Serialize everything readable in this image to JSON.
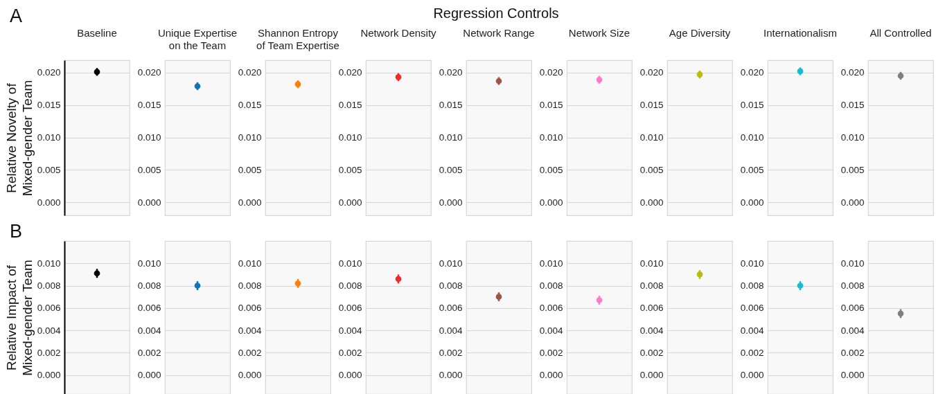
{
  "chart_data": [
    {
      "type": "scatter",
      "title": "Baseline",
      "ylabel": "Relative Novelty of\nMixed-gender Team",
      "annotations": [
        "A",
        "Regression Controls"
      ],
      "categories": [
        null
      ],
      "values": [
        0.0201
      ],
      "errors": [
        0.0006
      ],
      "color": "#000000",
      "marker": "circle",
      "ylim": [
        -0.002,
        0.0219
      ],
      "yticks": [
        {
          "value": 0,
          "label": "0.000"
        },
        {
          "value": 0.005,
          "label": "0.005"
        },
        {
          "value": 0.01,
          "label": "0.010"
        },
        {
          "value": 0.015,
          "label": "0.015"
        },
        {
          "value": 0.02,
          "label": "0.020"
        }
      ],
      "grid": "y"
    },
    {
      "type": "scatter",
      "title": "Unique Expertise\non the Team",
      "categories": [
        null
      ],
      "values": [
        0.0179
      ],
      "errors": [
        0.0006
      ],
      "color": "#0f75b8",
      "marker": "circle",
      "ylim": [
        -0.002,
        0.0219
      ],
      "yticks": [
        {
          "value": 0,
          "label": "0.000"
        },
        {
          "value": 0.005,
          "label": "0.005"
        },
        {
          "value": 0.01,
          "label": "0.010"
        },
        {
          "value": 0.015,
          "label": "0.015"
        },
        {
          "value": 0.02,
          "label": "0.020"
        }
      ],
      "grid": "y"
    },
    {
      "type": "scatter",
      "title": "Shannon Entropy\nof Team Expertise",
      "categories": [
        null
      ],
      "values": [
        0.0182
      ],
      "errors": [
        0.0006
      ],
      "color": "#ff7f0e",
      "marker": "circle",
      "ylim": [
        -0.002,
        0.0219
      ],
      "yticks": [
        {
          "value": 0,
          "label": "0.000"
        },
        {
          "value": 0.005,
          "label": "0.005"
        },
        {
          "value": 0.01,
          "label": "0.010"
        },
        {
          "value": 0.015,
          "label": "0.015"
        },
        {
          "value": 0.02,
          "label": "0.020"
        }
      ],
      "grid": "y"
    },
    {
      "type": "scatter",
      "title": "Network Density",
      "categories": [
        null
      ],
      "values": [
        0.0193
      ],
      "errors": [
        0.0006
      ],
      "color": "#ee2a2c",
      "marker": "circle",
      "ylim": [
        -0.002,
        0.0219
      ],
      "yticks": [
        {
          "value": 0,
          "label": "0.000"
        },
        {
          "value": 0.005,
          "label": "0.005"
        },
        {
          "value": 0.01,
          "label": "0.010"
        },
        {
          "value": 0.015,
          "label": "0.015"
        },
        {
          "value": 0.02,
          "label": "0.020"
        }
      ],
      "grid": "y"
    },
    {
      "type": "scatter",
      "title": "Network Range",
      "categories": [
        null
      ],
      "values": [
        0.0187
      ],
      "errors": [
        0.0006
      ],
      "color": "#9c5648",
      "marker": "circle",
      "ylim": [
        -0.002,
        0.0219
      ],
      "yticks": [
        {
          "value": 0,
          "label": "0.000"
        },
        {
          "value": 0.005,
          "label": "0.005"
        },
        {
          "value": 0.01,
          "label": "0.010"
        },
        {
          "value": 0.015,
          "label": "0.015"
        },
        {
          "value": 0.02,
          "label": "0.020"
        }
      ],
      "grid": "y"
    },
    {
      "type": "scatter",
      "title": "Network Size",
      "categories": [
        null
      ],
      "values": [
        0.0189
      ],
      "errors": [
        0.0006
      ],
      "color": "#ff7ac8",
      "marker": "circle",
      "ylim": [
        -0.002,
        0.0219
      ],
      "yticks": [
        {
          "value": 0,
          "label": "0.000"
        },
        {
          "value": 0.005,
          "label": "0.005"
        },
        {
          "value": 0.01,
          "label": "0.010"
        },
        {
          "value": 0.015,
          "label": "0.015"
        },
        {
          "value": 0.02,
          "label": "0.020"
        }
      ],
      "grid": "y"
    },
    {
      "type": "scatter",
      "title": "Age Diversity",
      "categories": [
        null
      ],
      "values": [
        0.0197
      ],
      "errors": [
        0.0006
      ],
      "color": "#bbbb11",
      "marker": "circle",
      "ylim": [
        -0.002,
        0.0219
      ],
      "yticks": [
        {
          "value": 0,
          "label": "0.000"
        },
        {
          "value": 0.005,
          "label": "0.005"
        },
        {
          "value": 0.01,
          "label": "0.010"
        },
        {
          "value": 0.015,
          "label": "0.015"
        },
        {
          "value": 0.02,
          "label": "0.020"
        }
      ],
      "grid": "y"
    },
    {
      "type": "scatter",
      "title": "Internationalism",
      "categories": [
        null
      ],
      "values": [
        0.0202
      ],
      "errors": [
        0.0006
      ],
      "color": "#13bed2",
      "marker": "circle",
      "ylim": [
        -0.002,
        0.0219
      ],
      "yticks": [
        {
          "value": 0,
          "label": "0.000"
        },
        {
          "value": 0.005,
          "label": "0.005"
        },
        {
          "value": 0.01,
          "label": "0.010"
        },
        {
          "value": 0.015,
          "label": "0.015"
        },
        {
          "value": 0.02,
          "label": "0.020"
        }
      ],
      "grid": "y"
    },
    {
      "type": "scatter",
      "title": "All Controlled",
      "categories": [
        null
      ],
      "values": [
        0.0195
      ],
      "errors": [
        0.0006
      ],
      "color": "#7f7f7f",
      "marker": "circle",
      "ylim": [
        -0.002,
        0.0219
      ],
      "yticks": [
        {
          "value": 0,
          "label": "0.000"
        },
        {
          "value": 0.005,
          "label": "0.005"
        },
        {
          "value": 0.01,
          "label": "0.010"
        },
        {
          "value": 0.015,
          "label": "0.015"
        },
        {
          "value": 0.02,
          "label": "0.020"
        }
      ],
      "grid": "y"
    },
    {
      "type": "scatter",
      "ylabel": "Relative Impact of\nMixed-gender Team",
      "annotations": [
        "B"
      ],
      "categories": [
        null
      ],
      "values": [
        0.0091
      ],
      "errors": [
        0.0004
      ],
      "color": "#000000",
      "marker": "circle",
      "ylim": [
        -0.0017,
        0.012
      ],
      "yticks": [
        {
          "value": 0,
          "label": "0.000"
        },
        {
          "value": 0.002,
          "label": "0.002"
        },
        {
          "value": 0.004,
          "label": "0.004"
        },
        {
          "value": 0.006,
          "label": "0.006"
        },
        {
          "value": 0.008,
          "label": "0.008"
        },
        {
          "value": 0.01,
          "label": "0.010"
        }
      ],
      "grid": "y"
    },
    {
      "type": "scatter",
      "categories": [
        null
      ],
      "values": [
        0.008
      ],
      "errors": [
        0.0004
      ],
      "color": "#0f75b8",
      "marker": "circle",
      "ylim": [
        -0.0017,
        0.012
      ],
      "yticks": [
        {
          "value": 0,
          "label": "0.000"
        },
        {
          "value": 0.002,
          "label": "0.002"
        },
        {
          "value": 0.004,
          "label": "0.004"
        },
        {
          "value": 0.006,
          "label": "0.006"
        },
        {
          "value": 0.008,
          "label": "0.008"
        },
        {
          "value": 0.01,
          "label": "0.010"
        }
      ],
      "grid": "y"
    },
    {
      "type": "scatter",
      "categories": [
        null
      ],
      "values": [
        0.0082
      ],
      "errors": [
        0.0004
      ],
      "color": "#ff7f0e",
      "marker": "circle",
      "ylim": [
        -0.0017,
        0.012
      ],
      "yticks": [
        {
          "value": 0,
          "label": "0.000"
        },
        {
          "value": 0.002,
          "label": "0.002"
        },
        {
          "value": 0.004,
          "label": "0.004"
        },
        {
          "value": 0.006,
          "label": "0.006"
        },
        {
          "value": 0.008,
          "label": "0.008"
        },
        {
          "value": 0.01,
          "label": "0.010"
        }
      ],
      "grid": "y"
    },
    {
      "type": "scatter",
      "categories": [
        null
      ],
      "values": [
        0.0086
      ],
      "errors": [
        0.0004
      ],
      "color": "#ee2a2c",
      "marker": "circle",
      "ylim": [
        -0.0017,
        0.012
      ],
      "yticks": [
        {
          "value": 0,
          "label": "0.000"
        },
        {
          "value": 0.002,
          "label": "0.002"
        },
        {
          "value": 0.004,
          "label": "0.004"
        },
        {
          "value": 0.006,
          "label": "0.006"
        },
        {
          "value": 0.008,
          "label": "0.008"
        },
        {
          "value": 0.01,
          "label": "0.010"
        }
      ],
      "grid": "y"
    },
    {
      "type": "scatter",
      "categories": [
        null
      ],
      "values": [
        0.007
      ],
      "errors": [
        0.0004
      ],
      "color": "#9c5648",
      "marker": "circle",
      "ylim": [
        -0.0017,
        0.012
      ],
      "yticks": [
        {
          "value": 0,
          "label": "0.000"
        },
        {
          "value": 0.002,
          "label": "0.002"
        },
        {
          "value": 0.004,
          "label": "0.004"
        },
        {
          "value": 0.006,
          "label": "0.006"
        },
        {
          "value": 0.008,
          "label": "0.008"
        },
        {
          "value": 0.01,
          "label": "0.010"
        }
      ],
      "grid": "y"
    },
    {
      "type": "scatter",
      "categories": [
        null
      ],
      "values": [
        0.0067
      ],
      "errors": [
        0.0004
      ],
      "color": "#ff7ac8",
      "marker": "circle",
      "ylim": [
        -0.0017,
        0.012
      ],
      "yticks": [
        {
          "value": 0,
          "label": "0.000"
        },
        {
          "value": 0.002,
          "label": "0.002"
        },
        {
          "value": 0.004,
          "label": "0.004"
        },
        {
          "value": 0.006,
          "label": "0.006"
        },
        {
          "value": 0.008,
          "label": "0.008"
        },
        {
          "value": 0.01,
          "label": "0.010"
        }
      ],
      "grid": "y"
    },
    {
      "type": "scatter",
      "categories": [
        null
      ],
      "values": [
        0.009
      ],
      "errors": [
        0.0004
      ],
      "color": "#bbbb11",
      "marker": "circle",
      "ylim": [
        -0.0017,
        0.012
      ],
      "yticks": [
        {
          "value": 0,
          "label": "0.000"
        },
        {
          "value": 0.002,
          "label": "0.002"
        },
        {
          "value": 0.004,
          "label": "0.004"
        },
        {
          "value": 0.006,
          "label": "0.006"
        },
        {
          "value": 0.008,
          "label": "0.008"
        },
        {
          "value": 0.01,
          "label": "0.010"
        }
      ],
      "grid": "y"
    },
    {
      "type": "scatter",
      "categories": [
        null
      ],
      "values": [
        0.008
      ],
      "errors": [
        0.0004
      ],
      "color": "#13bed2",
      "marker": "circle",
      "ylim": [
        -0.0017,
        0.012
      ],
      "yticks": [
        {
          "value": 0,
          "label": "0.000"
        },
        {
          "value": 0.002,
          "label": "0.002"
        },
        {
          "value": 0.004,
          "label": "0.004"
        },
        {
          "value": 0.006,
          "label": "0.006"
        },
        {
          "value": 0.008,
          "label": "0.008"
        },
        {
          "value": 0.01,
          "label": "0.010"
        }
      ],
      "grid": "y"
    },
    {
      "type": "scatter",
      "categories": [
        null
      ],
      "values": [
        0.0055
      ],
      "errors": [
        0.0004
      ],
      "color": "#7f7f7f",
      "marker": "circle",
      "ylim": [
        -0.0017,
        0.012
      ],
      "yticks": [
        {
          "value": 0,
          "label": "0.000"
        },
        {
          "value": 0.002,
          "label": "0.002"
        },
        {
          "value": 0.004,
          "label": "0.004"
        },
        {
          "value": 0.006,
          "label": "0.006"
        },
        {
          "value": 0.008,
          "label": "0.008"
        },
        {
          "value": 0.01,
          "label": "0.010"
        }
      ],
      "grid": "y"
    }
  ]
}
